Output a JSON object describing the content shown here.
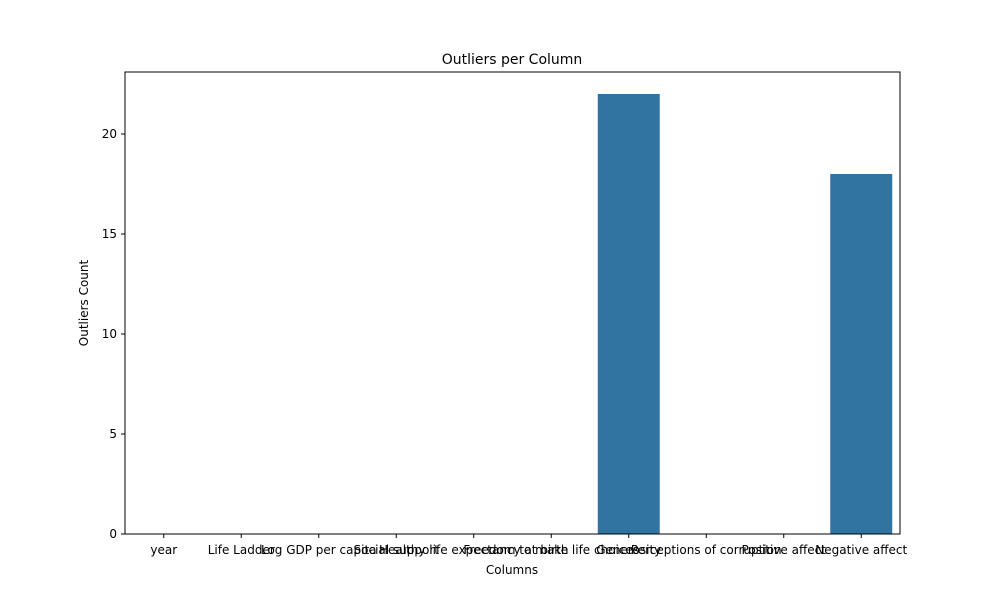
{
  "chart_data": {
    "type": "bar",
    "title": "Outliers per Column",
    "xlabel": "Columns",
    "ylabel": "Outliers Count",
    "categories": [
      "year",
      "Life Ladder",
      "Log GDP per capita",
      "Social support",
      "Healthy life expectancy at birth",
      "Freedom to make life choices",
      "Generosity",
      "Perceptions of corruption",
      "Positive affect",
      "Negative affect"
    ],
    "values": [
      0,
      0,
      0,
      0,
      0,
      0,
      22,
      0,
      0,
      18
    ],
    "ylim": [
      0,
      23.1
    ],
    "yticks": [
      0,
      5,
      10,
      15,
      20
    ],
    "bar_color": "#3274a1",
    "grid": false
  }
}
